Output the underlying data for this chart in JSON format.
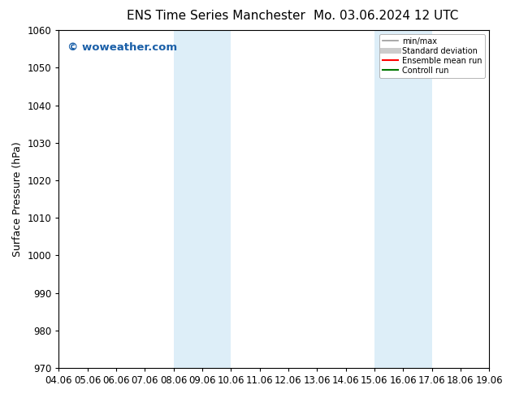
{
  "title_left": "ENS Time Series Manchester",
  "title_right": "Mo. 03.06.2024 12 UTC",
  "ylabel": "Surface Pressure (hPa)",
  "ylim": [
    970,
    1060
  ],
  "yticks": [
    970,
    980,
    990,
    1000,
    1010,
    1020,
    1030,
    1040,
    1050,
    1060
  ],
  "x_labels": [
    "04.06",
    "05.06",
    "06.06",
    "07.06",
    "08.06",
    "09.06",
    "10.06",
    "11.06",
    "12.06",
    "13.06",
    "14.06",
    "15.06",
    "16.06",
    "17.06",
    "18.06",
    "19.06"
  ],
  "x_values": [
    0,
    1,
    2,
    3,
    4,
    5,
    6,
    7,
    8,
    9,
    10,
    11,
    12,
    13,
    14,
    15
  ],
  "shaded_regions": [
    {
      "xmin": 4,
      "xmax": 6,
      "color": "#ddeef8"
    },
    {
      "xmin": 11,
      "xmax": 13,
      "color": "#ddeef8"
    }
  ],
  "watermark_text": "© woweather.com",
  "watermark_color": "#1a5fa8",
  "background_color": "#ffffff",
  "legend_entries": [
    {
      "label": "min/max",
      "color": "#999999",
      "lw": 1.2,
      "style": "solid"
    },
    {
      "label": "Standard deviation",
      "color": "#cccccc",
      "lw": 5,
      "style": "solid"
    },
    {
      "label": "Ensemble mean run",
      "color": "#ff0000",
      "lw": 1.5,
      "style": "solid"
    },
    {
      "label": "Controll run",
      "color": "#007700",
      "lw": 1.5,
      "style": "solid"
    }
  ],
  "title_fontsize": 11,
  "tick_label_fontsize": 8.5,
  "ylabel_fontsize": 9,
  "watermark_fontsize": 9.5,
  "grid_color": "#cccccc",
  "spine_color": "#000000",
  "tick_color": "#000000"
}
